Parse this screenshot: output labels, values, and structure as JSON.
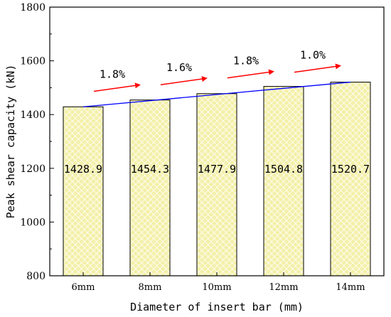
{
  "chart_data": {
    "type": "bar",
    "categories": [
      "6mm",
      "8mm",
      "10mm",
      "12mm",
      "14mm"
    ],
    "values": [
      1428.9,
      1454.3,
      1477.9,
      1504.8,
      1520.7
    ],
    "value_labels": [
      "1428.9",
      "1454.3",
      "1477.9",
      "1504.8",
      "1520.7"
    ],
    "xlabel": "Diameter of insert bar (mm)",
    "ylabel": "Peak shear capacity (kN)",
    "ylim": [
      800,
      1800
    ],
    "yticks": [
      "800",
      "1000",
      "1200",
      "1400",
      "1600",
      "1800"
    ],
    "increase_annotations": [
      "1.8%",
      "1.6%",
      "1.8%",
      "1.0%"
    ],
    "legend": "none",
    "grid": false,
    "colors": {
      "bar_fill": "#f4f0a8",
      "bar_pattern": "#ffffff",
      "bar_edge": "#000000",
      "trend_line": "#0000ff",
      "arrow": "#ff0000"
    }
  }
}
